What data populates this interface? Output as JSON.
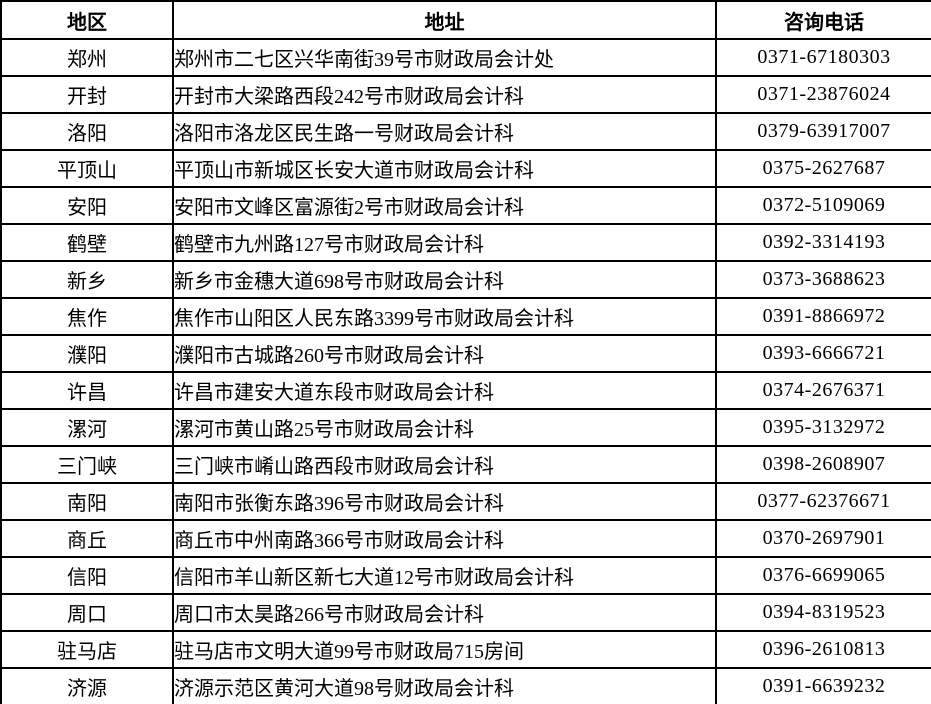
{
  "page": {
    "background": "#ffffff",
    "border_color": "#000000",
    "text_color": "#000000"
  },
  "table": {
    "columns": [
      {
        "key": "region",
        "label": "地区"
      },
      {
        "key": "address",
        "label": "地址"
      },
      {
        "key": "phone",
        "label": "咨询电话"
      }
    ],
    "rows": [
      {
        "region": "郑州",
        "address": "郑州市二七区兴华南街39号市财政局会计处",
        "phone": "0371-67180303"
      },
      {
        "region": "开封",
        "address": "开封市大梁路西段242号市财政局会计科",
        "phone": "0371-23876024"
      },
      {
        "region": "洛阳",
        "address": "洛阳市洛龙区民生路一号财政局会计科",
        "phone": "0379-63917007"
      },
      {
        "region": "平顶山",
        "address": "平顶山市新城区长安大道市财政局会计科",
        "phone": "0375-2627687"
      },
      {
        "region": "安阳",
        "address": "安阳市文峰区富源街2号市财政局会计科",
        "phone": "0372-5109069"
      },
      {
        "region": "鹤壁",
        "address": "鹤壁市九州路127号市财政局会计科",
        "phone": "0392-3314193"
      },
      {
        "region": "新乡",
        "address": "新乡市金穗大道698号市财政局会计科",
        "phone": "0373-3688623"
      },
      {
        "region": "焦作",
        "address": "焦作市山阳区人民东路3399号市财政局会计科",
        "phone": "0391-8866972"
      },
      {
        "region": "濮阳",
        "address": "濮阳市古城路260号市财政局会计科",
        "phone": "0393-6666721"
      },
      {
        "region": "许昌",
        "address": "许昌市建安大道东段市财政局会计科",
        "phone": "0374-2676371"
      },
      {
        "region": "漯河",
        "address": "漯河市黄山路25号市财政局会计科",
        "phone": "0395-3132972"
      },
      {
        "region": "三门峡",
        "address": "三门峡市崤山路西段市财政局会计科",
        "phone": "0398-2608907"
      },
      {
        "region": "南阳",
        "address": "南阳市张衡东路396号市财政局会计科",
        "phone": "0377-62376671"
      },
      {
        "region": "商丘",
        "address": "商丘市中州南路366号市财政局会计科",
        "phone": "0370-2697901"
      },
      {
        "region": "信阳",
        "address": "信阳市羊山新区新七大道12号市财政局会计科",
        "phone": "0376-6699065"
      },
      {
        "region": "周口",
        "address": "周口市太昊路266号市财政局会计科",
        "phone": "0394-8319523"
      },
      {
        "region": "驻马店",
        "address": "驻马店市文明大道99号市财政局715房间",
        "phone": "0396-2610813"
      },
      {
        "region": "济源",
        "address": "济源示范区黄河大道98号财政局会计科",
        "phone": "0391-6639232"
      }
    ]
  }
}
